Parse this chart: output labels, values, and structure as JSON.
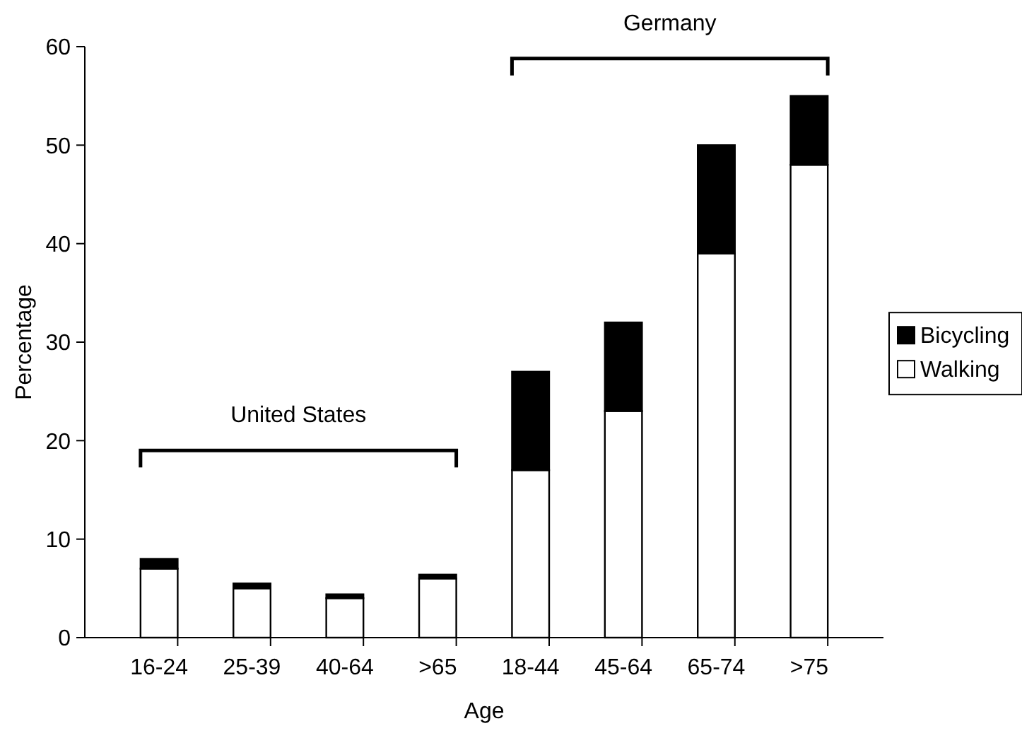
{
  "chart_data": {
    "type": "bar",
    "stacked": true,
    "xlabel": "Age",
    "ylabel": "Percentage",
    "categories": [
      "16-24",
      "25-39",
      "40-64",
      ">65",
      "18-44",
      "45-64",
      "65-74",
      ">75"
    ],
    "series": [
      {
        "name": "Walking",
        "color": "#ffffff",
        "values": [
          7,
          5,
          4,
          6,
          17,
          23,
          39,
          48
        ]
      },
      {
        "name": "Bicycling",
        "color": "#000000",
        "values": [
          1,
          0.5,
          0.4,
          0.4,
          10,
          9,
          11,
          7
        ]
      }
    ],
    "ylim": [
      0,
      60
    ],
    "yticks": [
      0,
      10,
      20,
      30,
      40,
      50,
      60
    ],
    "grid": false,
    "legend": "right",
    "annotations": [
      "United States",
      "Germany"
    ]
  }
}
